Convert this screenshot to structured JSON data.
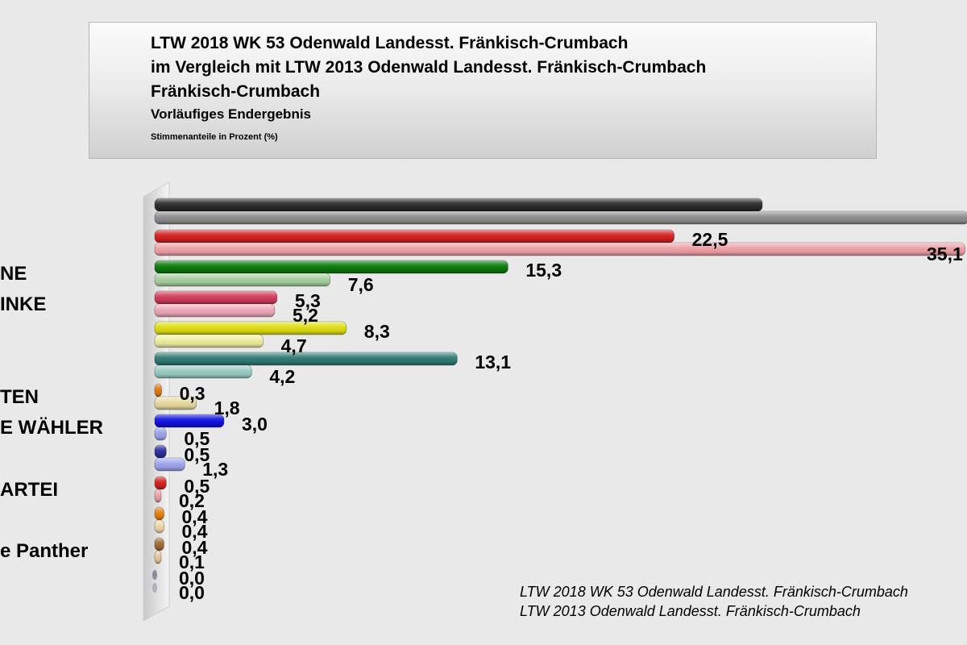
{
  "title": {
    "line1": "LTW 2018 WK 53 Odenwald Landesst. Fränkisch-Crumbach",
    "line2": "im Vergleich mit LTW 2013 Odenwald Landesst. Fränkisch-Crumbach",
    "line3": "Fränkisch-Crumbach",
    "subtitle": "Vorläufiges Endergebnis",
    "note": "Stimmenanteile in Prozent (%)"
  },
  "legend": {
    "series_2018": "LTW 2018 WK 53 Odenwald Landesst. Fränkisch-Crumbach",
    "series_2013": "LTW 2013 Odenwald Landesst. Fränkisch-Crumbach"
  },
  "chart_data": {
    "type": "bar",
    "orientation": "horizontal",
    "categories": [
      "",
      "",
      "NE",
      "INKE",
      "",
      "",
      "TEN",
      "E WÄHLER",
      "",
      "ARTEI",
      "",
      "e Panther",
      ""
    ],
    "series": [
      {
        "name": "LTW 2018 WK 53 Odenwald Landesst. Fränkisch-Crumbach",
        "values": [
          null,
          22.5,
          15.3,
          5.3,
          8.3,
          13.1,
          0.3,
          3.0,
          0.5,
          0.5,
          0.4,
          0.4,
          0.0
        ],
        "labels": [
          "",
          "22,5",
          "15,3",
          "5,3",
          "8,3",
          "13,1",
          "0,3",
          "3,0",
          "0,5",
          "0,5",
          "0,4",
          "0,4",
          "0,0"
        ]
      },
      {
        "name": "LTW 2013 Odenwald Landesst. Fränkisch-Crumbach",
        "values": [
          null,
          35.1,
          7.6,
          5.2,
          4.7,
          4.2,
          1.8,
          0.5,
          1.3,
          0.2,
          0.4,
          0.1,
          0.0
        ],
        "labels": [
          "",
          "35,1",
          "7,6",
          "5,2",
          "4,7",
          "4,2",
          "1,8",
          "0,5",
          "1,3",
          "0,2",
          "0,4",
          "0,1",
          "0,0"
        ]
      }
    ],
    "colors_2018": [
      "#2a2a2a",
      "#d42020",
      "#0b7a0b",
      "#d23a5a",
      "#dede10",
      "#2f7a72",
      "#e07a10",
      "#1010e0",
      "#2a2e9a",
      "#d42020",
      "#e88010",
      "#a06a30",
      "#8a8aa0"
    ],
    "colors_2013": [
      "#8e8e8e",
      "#f0a0a8",
      "#a8d0a0",
      "#f0a8b8",
      "#f0f0a0",
      "#98ccc4",
      "#e8dca0",
      "#9ea4f0",
      "#a0a6f0",
      "#f0a0a8",
      "#f0d8a8",
      "#e8c8a0",
      "#b0b0c0"
    ],
    "xlim": [
      0,
      35.5
    ],
    "grid": false,
    "legend_position": "bottom-right"
  }
}
